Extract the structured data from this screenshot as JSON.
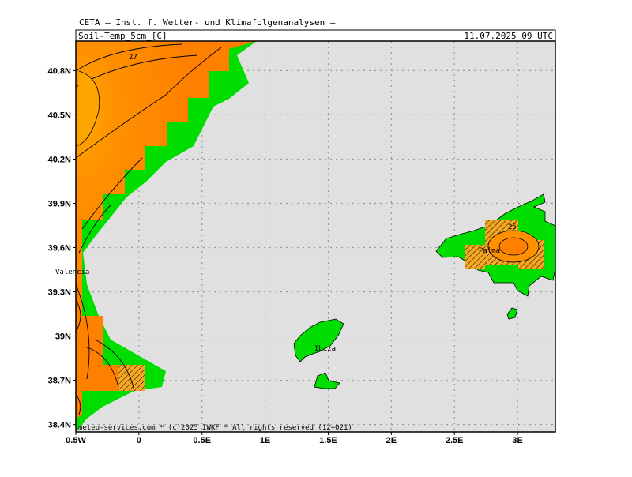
{
  "header": "CETA — Inst. f. Wetter- und Klimafolgenanalysen —",
  "map": {
    "title": "Soil-Temp_5cm_[C]",
    "date": "11.07.2025 09 UTC",
    "xlim": [
      -0.5,
      3.3
    ],
    "ylim": [
      38.35,
      41.0
    ],
    "xticks": [
      {
        "value": -0.5,
        "label": "0.5W"
      },
      {
        "value": 0,
        "label": "0"
      },
      {
        "value": 0.5,
        "label": "0.5E"
      },
      {
        "value": 1,
        "label": "1E"
      },
      {
        "value": 1.5,
        "label": "1.5E"
      },
      {
        "value": 2,
        "label": "2E"
      },
      {
        "value": 2.5,
        "label": "2.5E"
      },
      {
        "value": 3,
        "label": "3E"
      }
    ],
    "yticks": [
      {
        "value": 38.4,
        "label": "38.4N"
      },
      {
        "value": 38.7,
        "label": "38.7N"
      },
      {
        "value": 39,
        "label": "39N"
      },
      {
        "value": 39.3,
        "label": "39.3N"
      },
      {
        "value": 39.6,
        "label": "39.6N"
      },
      {
        "value": 39.9,
        "label": "39.9N"
      },
      {
        "value": 40.2,
        "label": "40.2N"
      },
      {
        "value": 40.5,
        "label": "40.5N"
      },
      {
        "value": 40.8,
        "label": "40.8N"
      }
    ],
    "places": [
      "Valencia",
      "Ibiza",
      "Palma"
    ],
    "contour_labels": [
      "27",
      "25"
    ],
    "footer": "meteo-services.com * (c)2025 IWKF * All rights reserved (12+021)"
  }
}
